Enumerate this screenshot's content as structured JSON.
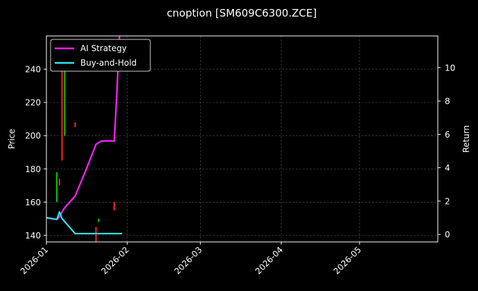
{
  "chart_data": {
    "type": "line",
    "title": "cnoption [SM609C6300.ZCE]",
    "xlabel": "",
    "ylabel_left": "Price",
    "ylabel_right": "Return",
    "x_range": [
      "2026-01-01",
      "2026-05-31"
    ],
    "x_ticks": [
      "2026-01",
      "2026-02",
      "2026-03",
      "2026-04",
      "2026-05"
    ],
    "y_left_range": [
      136,
      260
    ],
    "y_left_ticks": [
      140,
      160,
      180,
      200,
      220,
      240
    ],
    "y_right_range": [
      -0.45,
      11.9
    ],
    "y_right_ticks": [
      0,
      2,
      4,
      6,
      8,
      10
    ],
    "grid": true,
    "legend_position": "top-left",
    "series": [
      {
        "name": "AI Strategy",
        "color": "#ff22ff",
        "axis": "right",
        "points": [
          {
            "x": "2026-01-01",
            "y": 1.0
          },
          {
            "x": "2026-01-05",
            "y": 0.9
          },
          {
            "x": "2026-01-06",
            "y": 1.05
          },
          {
            "x": "2026-01-07",
            "y": 1.35
          },
          {
            "x": "2026-01-08",
            "y": 1.6
          },
          {
            "x": "2026-01-12",
            "y": 2.3
          },
          {
            "x": "2026-01-16",
            "y": 3.8
          },
          {
            "x": "2026-01-20",
            "y": 5.4
          },
          {
            "x": "2026-01-22",
            "y": 5.6
          },
          {
            "x": "2026-01-27",
            "y": 5.6
          },
          {
            "x": "2026-01-28",
            "y": 8.5
          },
          {
            "x": "2026-01-29",
            "y": 11.9
          }
        ]
      },
      {
        "name": "Buy-and-Hold",
        "color": "#33e4ee",
        "axis": "right",
        "points": [
          {
            "x": "2026-01-01",
            "y": 1.0
          },
          {
            "x": "2026-01-05",
            "y": 0.9
          },
          {
            "x": "2026-01-06",
            "y": 1.35
          },
          {
            "x": "2026-01-07",
            "y": 0.95
          },
          {
            "x": "2026-01-12",
            "y": 0.05
          },
          {
            "x": "2026-01-20",
            "y": 0.05
          },
          {
            "x": "2026-01-30",
            "y": 0.05
          }
        ]
      }
    ],
    "candles": [
      {
        "x": "2026-01-05",
        "low": 160,
        "high": 178,
        "color": "#00cc00"
      },
      {
        "x": "2026-01-06",
        "low": 170,
        "high": 174,
        "color": "#ff2222"
      },
      {
        "x": "2026-01-07",
        "low": 185,
        "high": 245,
        "color": "#ff2222"
      },
      {
        "x": "2026-01-08",
        "low": 200,
        "high": 250,
        "color": "#00cc00"
      },
      {
        "x": "2026-01-12",
        "low": 205,
        "high": 208,
        "color": "#ff2222"
      },
      {
        "x": "2026-01-20",
        "low": 135,
        "high": 145,
        "color": "#ff2222"
      },
      {
        "x": "2026-01-21",
        "low": 148,
        "high": 150,
        "color": "#00cc00"
      },
      {
        "x": "2026-01-27",
        "low": 155,
        "high": 160,
        "color": "#ff2222"
      }
    ]
  }
}
